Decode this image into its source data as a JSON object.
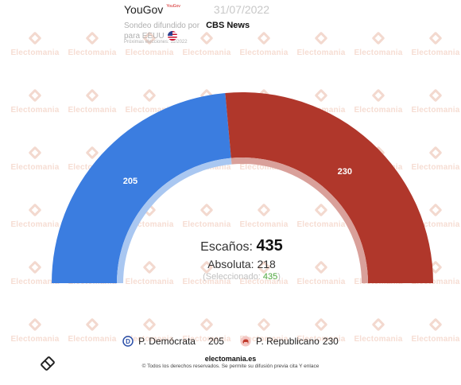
{
  "watermark_text": "Electomania",
  "header": {
    "pollster": "YouGov",
    "pollster_logo": "YouGov",
    "date": "31/07/2022",
    "published_by_label": "Sondeo difundido por",
    "media": "CBS News",
    "region_label": "para EEUU",
    "next_elections": "Próximas elecciones: 11/2022"
  },
  "center": {
    "seats_label": "Escaños:",
    "seats_total": "435",
    "majority_label": "Absoluta: 218",
    "selected_open": "(Seleccionado: ",
    "selected_value": "435",
    "selected_close": ")"
  },
  "legend": [
    {
      "icon": "democrat-donkey-icon",
      "name": "P. Demócrata",
      "value": "205"
    },
    {
      "icon": "republican-elephant-icon",
      "name": "P. Republicano",
      "value": "230"
    }
  ],
  "footer": {
    "site": "electomania.es",
    "rights": "© Todos los derechos reservados. Se permite su difusión previa cita Y enlace"
  },
  "chart_data": {
    "type": "pie",
    "subtype": "semicircle-parliament",
    "total": 435,
    "majority": 218,
    "series": [
      {
        "name": "P. Demócrata",
        "value": 205,
        "color": "#3b7de0",
        "inner_color": "#a9c7f1"
      },
      {
        "name": "P. Republicano",
        "value": 230,
        "color": "#b0372b",
        "inner_color": "#d9a09a"
      }
    ]
  }
}
